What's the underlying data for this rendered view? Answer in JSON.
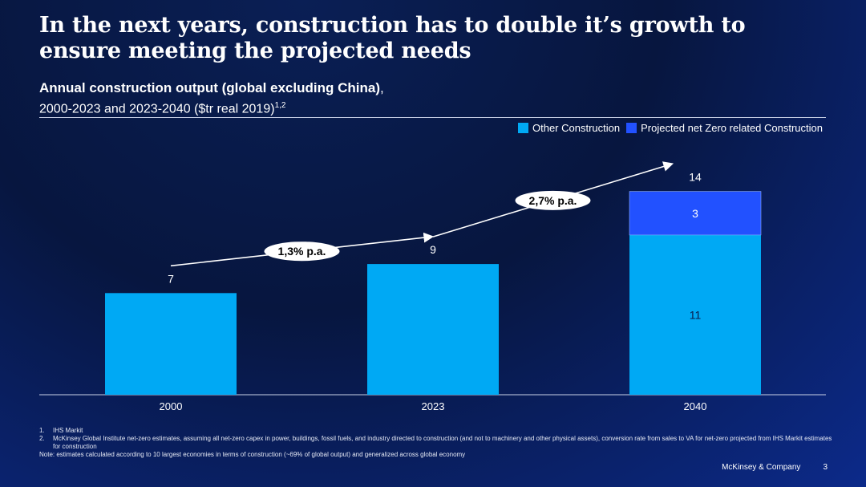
{
  "title": "In the next years, construction has to double it’s growth to ensure meeting the projected needs",
  "subtitle": {
    "main": "Annual construction output (global excluding China)",
    "main_suffix": ",",
    "sub": "2000-2023 and 2023-2040 ($tr real 2019)",
    "sup": "1,2"
  },
  "colors": {
    "other": "#00a9f4",
    "netzero": "#2251ff"
  },
  "chart_data": {
    "type": "bar",
    "stacked": true,
    "categories": [
      "2000",
      "2023",
      "2040"
    ],
    "series": [
      {
        "name": "Other Construction",
        "values": [
          7,
          9,
          11
        ]
      },
      {
        "name": "Projected net Zero related Construction",
        "values": [
          0,
          0,
          3
        ]
      }
    ],
    "totals": [
      7,
      9,
      14
    ],
    "segment_labels": {
      "2040": [
        "11",
        "3"
      ]
    },
    "ylim": [
      0,
      17
    ],
    "growth_annotations": [
      {
        "label": "1,3% p.a.",
        "from": "2000",
        "to": "2023"
      },
      {
        "label": "2,7% p.a.",
        "from": "2023",
        "to": "2040"
      }
    ],
    "legend": [
      "Other Construction",
      "Projected net Zero related Construction"
    ],
    "legend_position": "top-right"
  },
  "footnotes": [
    {
      "num": "1.",
      "text": "IHS Markit"
    },
    {
      "num": "2.",
      "text": "McKinsey Global Institute net-zero estimates, assuming all net-zero capex in power, buildings, fossil fuels, and industry directed to construction (and not to machinery and other physical assets), conversion rate from sales to VA for net-zero projected from IHS Markit estimates for construction"
    }
  ],
  "note": "Note: estimates calculated according to 10 largest economies in terms of construction (~69% of global output) and generalized across global economy",
  "footer": {
    "company": "McKinsey & Company",
    "page": "3"
  }
}
